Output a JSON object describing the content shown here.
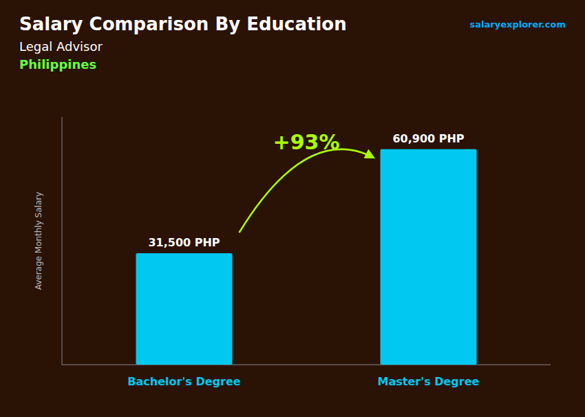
{
  "chart_data": {
    "type": "bar",
    "title": "Salary Comparison By Education",
    "subtitle": "Legal Advisor",
    "annotations": [
      "Philippines",
      "+93%",
      "salaryexplorer.com"
    ],
    "y_label": "Average Monthly Salary",
    "categories": [
      "Bachelor's Degree",
      "Master's Degree"
    ],
    "values": [
      31500,
      60900
    ],
    "value_labels": [
      "31,500 PHP",
      "60,900 PHP"
    ],
    "data_labels": true,
    "color": "#00C8F0",
    "ylim": [
      0,
      70000
    ],
    "tick_labels": false
  }
}
